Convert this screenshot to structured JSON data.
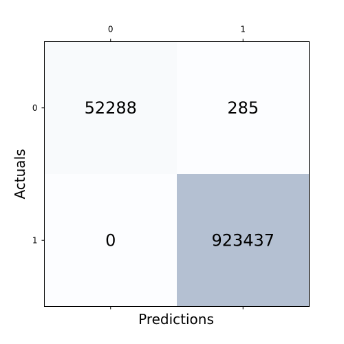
{
  "chart_data": {
    "type": "heatmap",
    "title": "",
    "xlabel": "Predictions",
    "ylabel": "Actuals",
    "x_ticks": [
      "0",
      "1"
    ],
    "y_ticks": [
      "0",
      "1"
    ],
    "x_tick_position": "top",
    "matrix": [
      [
        52288,
        285
      ],
      [
        0,
        923437
      ]
    ],
    "cell_labels": [
      [
        "52288",
        "285"
      ],
      [
        "0",
        "923437"
      ]
    ],
    "colormap": {
      "low": "#fcfdff",
      "high": "#b4c0d2"
    },
    "grid": false,
    "legend": "none"
  }
}
